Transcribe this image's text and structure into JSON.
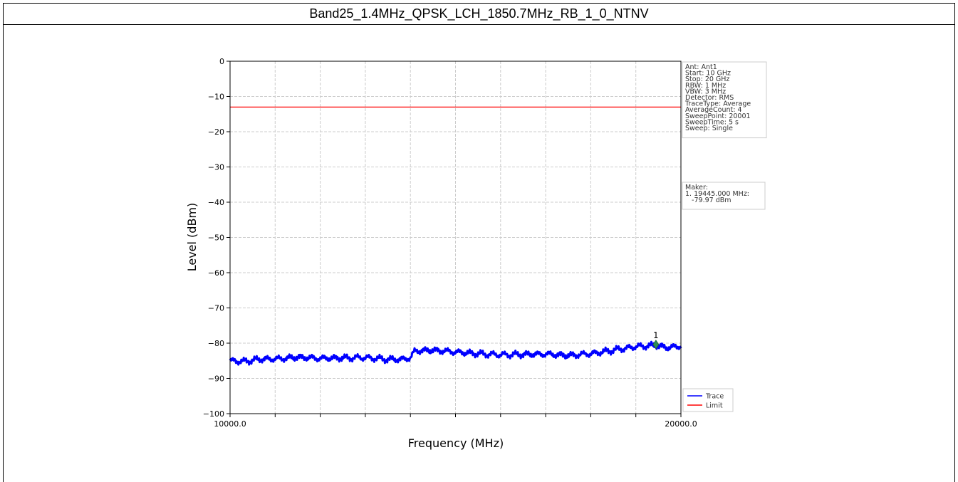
{
  "page": {
    "title": "Band25_1.4MHz_QPSK_LCH_1850.7MHz_RB_1_0_NTNV"
  },
  "chart_data": {
    "type": "line",
    "title": "",
    "xlabel": "Frequency (MHz)",
    "ylabel": "Level (dBm)",
    "xlim": [
      10000.0,
      20000.0
    ],
    "ylim": [
      -100,
      0
    ],
    "x_tick_labels": [
      "10000.0",
      "20000.0"
    ],
    "x_grid_count": 10,
    "y_ticks": [
      0,
      -10,
      -20,
      -30,
      -40,
      -50,
      -60,
      -70,
      -80,
      -90,
      -100
    ],
    "y_tick_labels": [
      "0",
      "−10",
      "−20",
      "−30",
      "−40",
      "−50",
      "−60",
      "−70",
      "−80",
      "−90",
      "−100"
    ],
    "grid": true,
    "series": [
      {
        "name": "Trace",
        "color": "#0000ff",
        "x": [
          10000,
          10300,
          10700,
          11000,
          11500,
          12000,
          12500,
          13000,
          13500,
          13800,
          14000,
          14100,
          14500,
          15000,
          15500,
          16000,
          16500,
          17000,
          17500,
          18000,
          18500,
          19000,
          19445,
          19700,
          20000
        ],
        "y": [
          -85.0,
          -85.2,
          -84.5,
          -84.5,
          -84.0,
          -84.3,
          -84.2,
          -84.1,
          -84.6,
          -84.6,
          -84.2,
          -82.2,
          -82.0,
          -82.5,
          -83.0,
          -83.3,
          -83.2,
          -83.1,
          -83.5,
          -83.0,
          -82.0,
          -81.0,
          -80.6,
          -81.3,
          -80.8
        ]
      },
      {
        "name": "Limit",
        "color": "#ff0000",
        "x": [
          10000,
          20000
        ],
        "y": [
          -13,
          -13
        ]
      }
    ],
    "marker": {
      "label": "1",
      "x": 19445.0,
      "y": -79.97,
      "color": "#2e8b57"
    },
    "legend_position": "bottom-right",
    "info_box": {
      "lines": [
        "Ant: Ant1",
        "Start: 10 GHz",
        "Stop: 20 GHz",
        "RBW: 1 MHz",
        "VBW: 3 MHz",
        "Detector: RMS",
        "TraceType: Average",
        "AverageCount: 4",
        "SweepPoint: 20001",
        "SweepTime: 5 s",
        "Sweep: Single"
      ]
    },
    "marker_box": {
      "lines": [
        "Maker:",
        "1. 19445.000 MHz:",
        "   -79.97 dBm"
      ]
    }
  }
}
